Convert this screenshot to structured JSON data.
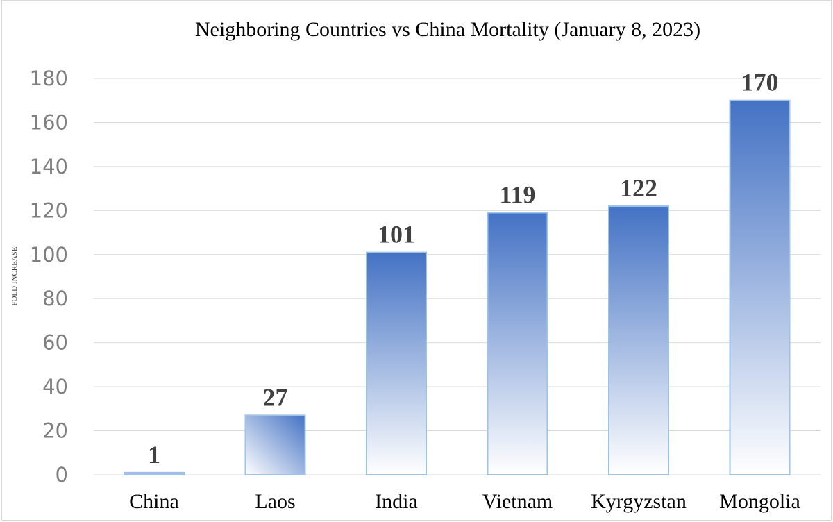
{
  "chart_data": {
    "type": "bar",
    "title": "Neighboring Countries vs China Mortality (January 8, 2023)",
    "xlabel": "",
    "ylabel": "FOLD INCREASE",
    "categories": [
      "China",
      "Laos",
      "India",
      "Vietnam",
      "Kyrgyzstan",
      "Mongolia"
    ],
    "values": [
      1,
      27,
      101,
      119,
      122,
      170
    ],
    "data_labels": [
      "1",
      "27",
      "101",
      "119",
      "122",
      "170"
    ],
    "ylim": [
      0,
      180
    ],
    "yticks": [
      "0",
      "20",
      "40",
      "60",
      "80",
      "100",
      "120",
      "140",
      "160",
      "180"
    ],
    "grid": true,
    "legend": "none",
    "colors": {
      "bar_top": "#4472C4",
      "bar_bottom": "#FFFFFF",
      "bar_border": "#9DC3E6",
      "grid": "#D9D9D9"
    }
  }
}
